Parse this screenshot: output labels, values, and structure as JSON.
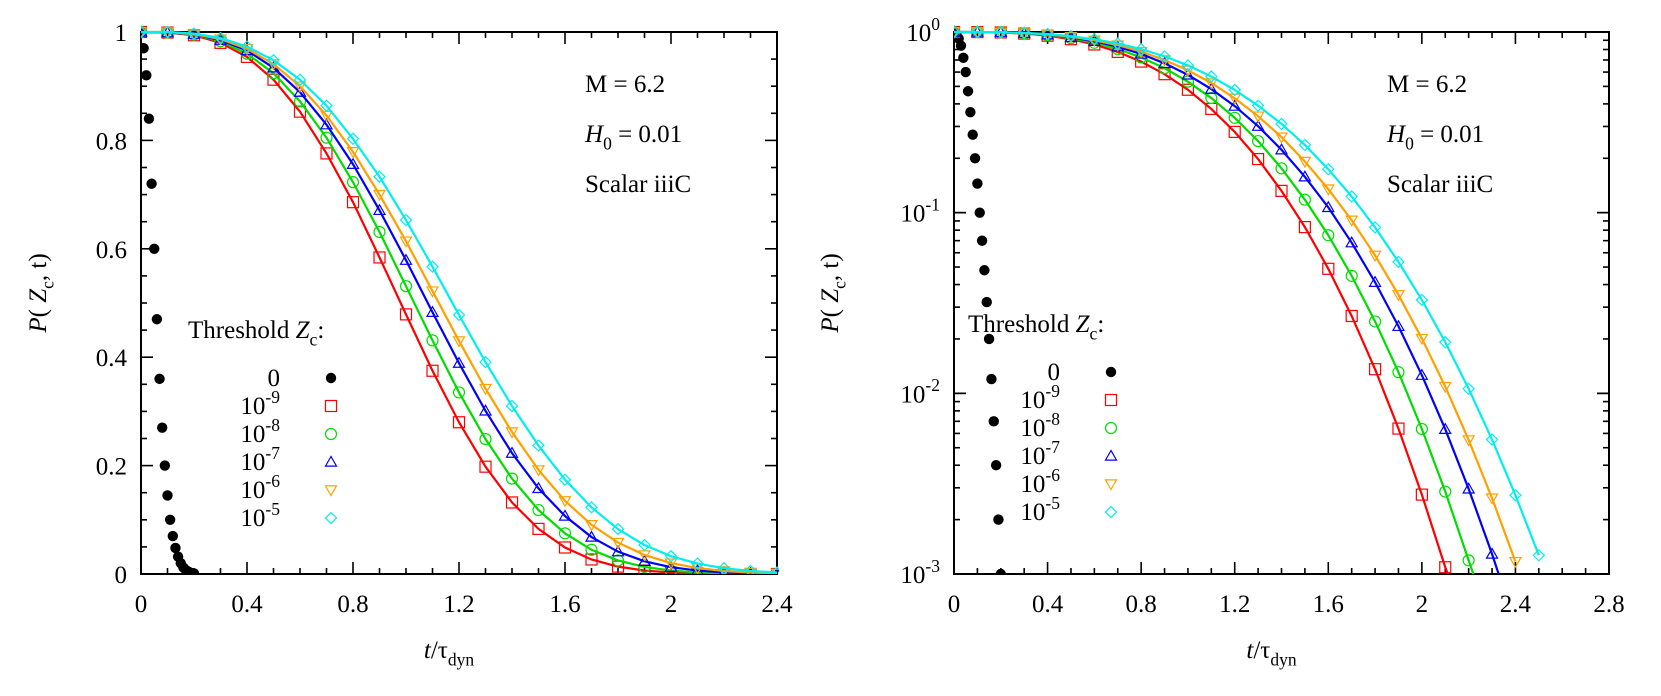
{
  "figure": {
    "panels": [
      {
        "id": "linear",
        "ylabel": "P( Z_c, t)",
        "xlabel": "t/τ_dyn",
        "annotations": [
          "M = 6.2",
          "H_0 = 0.01",
          "Scalar iiiC"
        ],
        "legend_title": "Threshold Z_c:",
        "legend_entries": [
          "0",
          "10^-9",
          "10^-8",
          "10^-7",
          "10^-6",
          "10^-5"
        ]
      },
      {
        "id": "log",
        "ylabel": "P( Z_c, t)",
        "xlabel": "t/τ_dyn",
        "annotations": [
          "M = 6.2",
          "H_0 = 0.01",
          "Scalar iiiC"
        ],
        "legend_title": "Threshold Z_c:",
        "legend_entries": [
          "0",
          "10^-9",
          "10^-8",
          "10^-7",
          "10^-6",
          "10^-5"
        ]
      }
    ]
  },
  "colors": {
    "0": "#000000",
    "1e-9": "#ff0000",
    "1e-8": "#00dd00",
    "1e-7": "#0000ff",
    "1e-6": "#ffa000",
    "1e-5": "#00eeee"
  },
  "chart_data": [
    {
      "type": "scatter",
      "title": "",
      "xlabel": "t/τ_dyn",
      "ylabel": "P(Z_c, t)",
      "xlim": [
        0,
        2.4
      ],
      "ylim": [
        0,
        1
      ],
      "yscale": "linear",
      "xticks": [
        0,
        0.4,
        0.8,
        1.2,
        1.6,
        2,
        2.4
      ],
      "yticks": [
        0,
        0.2,
        0.4,
        0.6,
        0.8,
        1
      ],
      "legend_title": "Threshold Z_c:",
      "legend_position": "lower-left-center",
      "annotations": [
        "M = 6.2",
        "H_0 = 0.01",
        "Scalar iiiC"
      ],
      "grid": false,
      "series": "shared"
    },
    {
      "type": "scatter",
      "title": "",
      "xlabel": "t/τ_dyn",
      "ylabel": "P(Z_c, t)",
      "xlim": [
        0,
        2.8
      ],
      "ylim": [
        0.001,
        1
      ],
      "yscale": "log",
      "xticks": [
        0,
        0.4,
        0.8,
        1.2,
        1.6,
        2,
        2.4,
        2.8
      ],
      "yticks": [
        "10^-3",
        "10^-2",
        "10^-1",
        "10^0"
      ],
      "legend_title": "Threshold Z_c:",
      "legend_position": "lower-left-center",
      "annotations": [
        "M = 6.2",
        "H_0 = 0.01",
        "Scalar iiiC"
      ],
      "grid": false,
      "series": "shared"
    }
  ],
  "series": [
    {
      "name": "0",
      "marker": "filled-circle",
      "color": "#000000",
      "fit_line": false,
      "x": [
        0,
        0.01,
        0.02,
        0.03,
        0.04,
        0.05,
        0.06,
        0.07,
        0.08,
        0.09,
        0.1,
        0.11,
        0.12,
        0.13,
        0.14,
        0.15,
        0.16,
        0.17,
        0.18,
        0.19,
        0.2
      ],
      "y": [
        1,
        0.97,
        0.92,
        0.84,
        0.72,
        0.6,
        0.47,
        0.36,
        0.27,
        0.2,
        0.145,
        0.1,
        0.07,
        0.048,
        0.032,
        0.02,
        0.012,
        0.007,
        0.004,
        0.002,
        0.001
      ]
    },
    {
      "name": "10^-9",
      "marker": "square",
      "color": "#ff0000",
      "fit_line": true,
      "x": [
        0,
        0.1,
        0.2,
        0.3,
        0.4,
        0.5,
        0.6,
        0.7,
        0.8,
        0.9,
        1.0,
        1.1,
        1.2,
        1.3,
        1.4,
        1.5,
        1.6,
        1.7,
        1.8,
        1.9,
        2.0,
        2.1,
        2.2,
        2.3,
        2.4
      ],
      "y": [
        1,
        0.999,
        0.994,
        0.98,
        0.954,
        0.912,
        0.853,
        0.776,
        0.686,
        0.584,
        0.479,
        0.375,
        0.28,
        0.198,
        0.132,
        0.0832,
        0.0489,
        0.0268,
        0.0136,
        0.00638,
        0.00275,
        0.00109,
        0.00039,
        0.000128,
        3.75e-05
      ]
    },
    {
      "name": "10^-8",
      "marker": "circle",
      "color": "#00dd00",
      "fit_line": true,
      "x": [
        0,
        0.1,
        0.2,
        0.3,
        0.4,
        0.5,
        0.6,
        0.7,
        0.8,
        0.9,
        1.0,
        1.1,
        1.2,
        1.3,
        1.4,
        1.5,
        1.6,
        1.7,
        1.8,
        1.9,
        2.0,
        2.1,
        2.2,
        2.3,
        2.4
      ],
      "y": [
        1,
        0.999,
        0.995,
        0.983,
        0.96,
        0.924,
        0.872,
        0.805,
        0.723,
        0.631,
        0.531,
        0.431,
        0.335,
        0.249,
        0.176,
        0.118,
        0.075,
        0.0447,
        0.025,
        0.0131,
        0.00635,
        0.00286,
        0.00119,
        0.000455,
        0.000159
      ]
    },
    {
      "name": "10^-7",
      "marker": "triangle-up",
      "color": "#0000ff",
      "fit_line": true,
      "x": [
        0,
        0.1,
        0.2,
        0.3,
        0.4,
        0.5,
        0.6,
        0.7,
        0.8,
        0.9,
        1.0,
        1.1,
        1.2,
        1.3,
        1.4,
        1.5,
        1.6,
        1.7,
        1.8,
        1.9,
        2.0,
        2.1,
        2.2,
        2.3,
        2.4
      ],
      "y": [
        1,
        0.999,
        0.996,
        0.985,
        0.966,
        0.934,
        0.889,
        0.829,
        0.756,
        0.671,
        0.579,
        0.483,
        0.389,
        0.301,
        0.223,
        0.158,
        0.107,
        0.0682,
        0.0412,
        0.0235,
        0.0126,
        0.00633,
        0.00296,
        0.00129,
        0.000522
      ]
    },
    {
      "name": "10^-6",
      "marker": "triangle-down",
      "color": "#ffa000",
      "fit_line": true,
      "x": [
        0,
        0.1,
        0.2,
        0.3,
        0.4,
        0.5,
        0.6,
        0.7,
        0.8,
        0.9,
        1.0,
        1.1,
        1.2,
        1.3,
        1.4,
        1.5,
        1.6,
        1.7,
        1.8,
        1.9,
        2.0,
        2.1,
        2.2,
        2.3,
        2.4
      ],
      "y": [
        1,
        1.0,
        0.996,
        0.987,
        0.969,
        0.941,
        0.9,
        0.846,
        0.779,
        0.7,
        0.614,
        0.522,
        0.43,
        0.342,
        0.262,
        0.192,
        0.135,
        0.0908,
        0.058,
        0.0351,
        0.0201,
        0.0109,
        0.00552,
        0.00263,
        0.00117
      ]
    },
    {
      "name": "10^-5",
      "marker": "diamond",
      "color": "#00eeee",
      "fit_line": true,
      "x": [
        0,
        0.1,
        0.2,
        0.3,
        0.4,
        0.5,
        0.6,
        0.7,
        0.8,
        0.9,
        1.0,
        1.1,
        1.2,
        1.3,
        1.4,
        1.5,
        1.6,
        1.7,
        1.8,
        1.9,
        2.0,
        2.1,
        2.2,
        2.3,
        2.4,
        2.5
      ],
      "y": [
        1,
        1.0,
        0.997,
        0.989,
        0.973,
        0.948,
        0.912,
        0.864,
        0.803,
        0.733,
        0.653,
        0.567,
        0.478,
        0.391,
        0.31,
        0.237,
        0.174,
        0.123,
        0.0829,
        0.0534,
        0.0329,
        0.0192,
        0.0106,
        0.00555,
        0.00273,
        0.00127
      ]
    }
  ]
}
